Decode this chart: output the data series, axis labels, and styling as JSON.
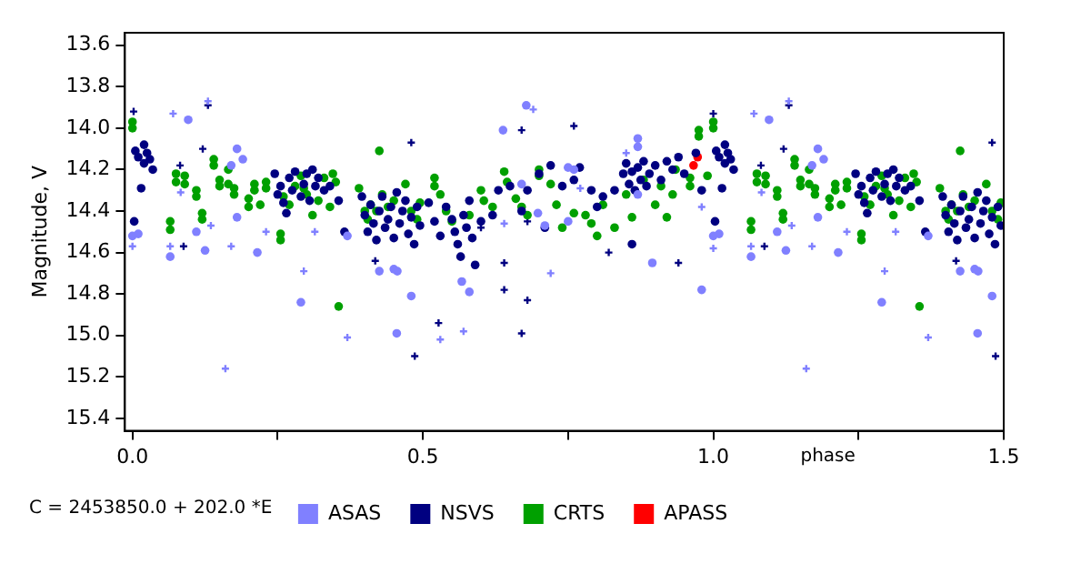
{
  "chart_data": {
    "type": "scatter",
    "ylabel": "Magnitude, V",
    "xlabel": "phase",
    "annotations": [
      "C = 2453850.0 + 202.0 *E"
    ],
    "legend": "bottom",
    "grid": false,
    "marker": "circle",
    "xlim": [
      -0.013,
      1.5
    ],
    "xticks": [
      {
        "value": 0,
        "label": "0.0"
      },
      {
        "value": 0.25,
        "label": null
      },
      {
        "value": 0.5,
        "label": "0.5"
      },
      {
        "value": 0.75,
        "label": null
      },
      {
        "value": 1,
        "label": "1.0"
      },
      {
        "value": 1.25,
        "label": null
      },
      {
        "value": 1.5,
        "label": "1.5"
      }
    ],
    "ylim": [
      15.46,
      13.54
    ],
    "yticks": [
      13.6,
      13.8,
      {
        "value": 14,
        "label": "14.0"
      },
      14.2,
      14.4,
      14.6,
      14.8,
      {
        "value": 15,
        "label": "15.0"
      },
      15.2,
      15.4
    ],
    "series": [
      {
        "name": "ASAS",
        "color": "#8080ff",
        "x": [
          0.096,
          0.18,
          0.17,
          0.19,
          0.0,
          0.01,
          0.065,
          0.11,
          0.125,
          0.18,
          0.215,
          0.29,
          0.37,
          0.425,
          0.455,
          0.45,
          0.456,
          0.48,
          0.567,
          0.58,
          0.638,
          0.678,
          0.67,
          0.698,
          0.71,
          0.75,
          0.76,
          0.75,
          0.87,
          0.87,
          0.895,
          0.98,
          1.0,
          0.87,
          1.096,
          1.18,
          1.17,
          1.19,
          1.01,
          1.065,
          1.11,
          1.125,
          1.18,
          1.215,
          1.29,
          1.37,
          1.425,
          1.455,
          1.45,
          1.456,
          1.48
        ],
        "values": [
          13.96,
          14.1,
          14.18,
          14.15,
          14.52,
          14.51,
          14.62,
          14.5,
          14.59,
          14.43,
          14.6,
          14.84,
          14.52,
          14.69,
          14.99,
          14.68,
          14.69,
          14.81,
          14.74,
          14.79,
          14.01,
          13.89,
          14.27,
          14.41,
          14.47,
          14.19,
          14.2,
          14.45,
          14.05,
          14.09,
          14.65,
          14.78,
          14.52,
          14.32,
          13.96,
          14.1,
          14.18,
          14.15,
          14.51,
          14.62,
          14.5,
          14.59,
          14.43,
          14.6,
          14.84,
          14.52,
          14.69,
          14.99,
          14.68,
          14.69,
          14.81
        ]
      },
      {
        "name": "NSVS",
        "color": "#000080",
        "x": [
          0.003,
          0.005,
          0.01,
          0.015,
          0.02,
          0.025,
          0.03,
          0.035,
          0.02,
          0.245,
          0.25,
          0.255,
          0.26,
          0.265,
          0.27,
          0.275,
          0.28,
          0.29,
          0.295,
          0.3,
          0.305,
          0.31,
          0.315,
          0.32,
          0.33,
          0.34,
          0.355,
          0.365,
          0.395,
          0.4,
          0.405,
          0.41,
          0.415,
          0.42,
          0.425,
          0.43,
          0.435,
          0.44,
          0.445,
          0.45,
          0.455,
          0.46,
          0.465,
          0.47,
          0.475,
          0.48,
          0.485,
          0.49,
          0.495,
          0.51,
          0.52,
          0.53,
          0.54,
          0.55,
          0.555,
          0.56,
          0.565,
          0.57,
          0.575,
          0.58,
          0.585,
          0.59,
          0.6,
          0.62,
          0.63,
          0.65,
          0.67,
          0.68,
          0.7,
          0.71,
          0.72,
          0.74,
          0.76,
          0.77,
          0.79,
          0.8,
          0.81,
          0.83,
          0.845,
          0.85,
          0.855,
          0.86,
          0.865,
          0.87,
          0.875,
          0.88,
          0.885,
          0.89,
          0.9,
          0.91,
          0.92,
          0.93,
          0.94,
          0.95,
          0.86,
          0.97,
          0.98,
          1.003,
          1.005,
          1.01,
          1.015,
          1.02,
          1.025,
          1.03,
          1.035,
          1.02,
          1.245,
          1.25,
          1.255,
          1.26,
          1.265,
          1.27,
          1.275,
          1.28,
          1.29,
          1.295,
          1.3,
          1.305,
          1.31,
          1.315,
          1.32,
          1.33,
          1.34,
          1.355,
          1.365,
          1.395,
          1.4,
          1.405,
          1.41,
          1.415,
          1.42,
          1.425,
          1.43,
          1.435,
          1.44,
          1.445,
          1.45,
          1.455,
          1.46,
          1.465,
          1.47,
          1.475,
          1.48,
          1.485,
          1.49,
          1.495
        ],
        "values": [
          14.45,
          14.11,
          14.14,
          14.29,
          14.08,
          14.12,
          14.15,
          14.2,
          14.17,
          14.22,
          14.32,
          14.28,
          14.36,
          14.41,
          14.24,
          14.3,
          14.21,
          14.33,
          14.27,
          14.22,
          14.35,
          14.2,
          14.28,
          14.24,
          14.3,
          14.28,
          14.35,
          14.5,
          14.33,
          14.42,
          14.5,
          14.37,
          14.46,
          14.54,
          14.4,
          14.33,
          14.48,
          14.44,
          14.38,
          14.53,
          14.31,
          14.46,
          14.4,
          14.35,
          14.51,
          14.43,
          14.56,
          14.38,
          14.47,
          14.36,
          14.45,
          14.52,
          14.38,
          14.44,
          14.5,
          14.56,
          14.62,
          14.42,
          14.48,
          14.35,
          14.53,
          14.66,
          14.45,
          14.42,
          14.3,
          14.28,
          14.4,
          14.3,
          14.22,
          14.48,
          14.18,
          14.28,
          14.25,
          14.19,
          14.3,
          14.38,
          14.33,
          14.3,
          14.22,
          14.17,
          14.27,
          14.21,
          14.3,
          14.19,
          14.25,
          14.16,
          14.28,
          14.22,
          14.18,
          14.25,
          14.16,
          14.2,
          14.14,
          14.22,
          14.56,
          14.12,
          14.3,
          14.45,
          14.11,
          14.14,
          14.29,
          14.08,
          14.12,
          14.15,
          14.2,
          14.17,
          14.22,
          14.32,
          14.28,
          14.36,
          14.41,
          14.24,
          14.3,
          14.21,
          14.33,
          14.27,
          14.22,
          14.35,
          14.2,
          14.28,
          14.24,
          14.3,
          14.28,
          14.35,
          14.5,
          14.33,
          14.42,
          14.5,
          14.37,
          14.46,
          14.54,
          14.4,
          14.33,
          14.48,
          14.44,
          14.38,
          14.53,
          14.31,
          14.46,
          14.4,
          14.35,
          14.51,
          14.43,
          14.56,
          14.38,
          14.47
        ]
      },
      {
        "name": "CRTS",
        "color": "#00a000",
        "x": [
          0.0,
          0.0,
          0.075,
          0.075,
          0.065,
          0.065,
          0.09,
          0.09,
          0.11,
          0.11,
          0.12,
          0.12,
          0.14,
          0.14,
          0.15,
          0.15,
          0.165,
          0.165,
          0.175,
          0.175,
          0.2,
          0.2,
          0.21,
          0.21,
          0.22,
          0.23,
          0.23,
          0.26,
          0.27,
          0.255,
          0.255,
          0.28,
          0.29,
          0.295,
          0.3,
          0.31,
          0.32,
          0.33,
          0.34,
          0.345,
          0.35,
          0.355,
          0.39,
          0.4,
          0.405,
          0.41,
          0.42,
          0.425,
          0.43,
          0.44,
          0.45,
          0.47,
          0.48,
          0.49,
          0.495,
          0.52,
          0.52,
          0.53,
          0.54,
          0.55,
          0.58,
          0.6,
          0.605,
          0.62,
          0.64,
          0.645,
          0.66,
          0.67,
          0.68,
          0.7,
          0.7,
          0.72,
          0.73,
          0.74,
          0.76,
          0.78,
          0.79,
          0.8,
          0.81,
          0.83,
          0.85,
          0.86,
          0.88,
          0.9,
          0.91,
          0.92,
          0.93,
          0.935,
          0.96,
          0.96,
          0.975,
          0.975,
          0.99,
          1.0,
          1.0,
          1.075,
          1.075,
          1.065,
          1.065,
          1.09,
          1.09,
          1.11,
          1.11,
          1.12,
          1.12,
          1.14,
          1.14,
          1.15,
          1.15,
          1.165,
          1.165,
          1.175,
          1.175,
          1.2,
          1.2,
          1.21,
          1.21,
          1.22,
          1.23,
          1.23,
          1.26,
          1.27,
          1.255,
          1.255,
          1.28,
          1.29,
          1.295,
          1.3,
          1.31,
          1.32,
          1.33,
          1.34,
          1.345,
          1.35,
          1.355,
          1.39,
          1.4,
          1.405,
          1.41,
          1.42,
          1.425,
          1.43,
          1.44,
          1.45,
          1.47,
          1.48,
          1.49,
          1.495
        ],
        "values": [
          13.97,
          14.0,
          14.22,
          14.26,
          14.45,
          14.49,
          14.23,
          14.27,
          14.3,
          14.33,
          14.41,
          14.44,
          14.15,
          14.18,
          14.25,
          14.28,
          14.2,
          14.27,
          14.29,
          14.32,
          14.34,
          14.38,
          14.27,
          14.3,
          14.37,
          14.26,
          14.29,
          14.33,
          14.37,
          14.51,
          14.54,
          14.28,
          14.23,
          14.29,
          14.32,
          14.42,
          14.35,
          14.24,
          14.38,
          14.22,
          14.26,
          14.86,
          14.29,
          14.4,
          14.44,
          14.37,
          14.4,
          14.11,
          14.32,
          14.38,
          14.35,
          14.27,
          14.4,
          14.44,
          14.36,
          14.24,
          14.28,
          14.32,
          14.4,
          14.45,
          14.42,
          14.3,
          14.35,
          14.38,
          14.21,
          14.26,
          14.34,
          14.38,
          14.42,
          14.2,
          14.23,
          14.27,
          14.37,
          14.48,
          14.41,
          14.42,
          14.46,
          14.52,
          14.37,
          14.48,
          14.32,
          14.43,
          14.25,
          14.37,
          14.28,
          14.43,
          14.32,
          14.2,
          14.24,
          14.28,
          14.01,
          14.04,
          14.23,
          13.97,
          14.0,
          14.22,
          14.26,
          14.45,
          14.49,
          14.23,
          14.27,
          14.3,
          14.33,
          14.41,
          14.44,
          14.15,
          14.18,
          14.25,
          14.28,
          14.2,
          14.27,
          14.29,
          14.32,
          14.34,
          14.38,
          14.27,
          14.3,
          14.37,
          14.26,
          14.29,
          14.33,
          14.37,
          14.51,
          14.54,
          14.28,
          14.23,
          14.29,
          14.32,
          14.42,
          14.35,
          14.24,
          14.38,
          14.22,
          14.26,
          14.86,
          14.29,
          14.4,
          14.44,
          14.37,
          14.4,
          14.11,
          14.32,
          14.38,
          14.35,
          14.27,
          14.4,
          14.44,
          14.36
        ]
      },
      {
        "name": "APASS",
        "color": "#ff0000",
        "x": [
          0.966,
          0.973
        ],
        "values": [
          14.18,
          14.14
        ]
      },
      {
        "color": "#8080ff",
        "marker": "cross",
        "x": [
          0.13,
          0.07,
          0.065,
          0.0,
          0.083,
          0.135,
          0.23,
          0.17,
          0.16,
          0.295,
          0.314,
          0.37,
          0.69,
          0.64,
          0.72,
          0.53,
          0.57,
          0.98,
          1.0,
          0.85,
          0.771,
          1.13,
          1.07,
          1.065,
          1.083,
          1.135,
          1.23,
          1.17,
          1.16,
          1.295,
          1.314,
          1.37
        ],
        "values": [
          13.87,
          13.93,
          14.57,
          14.57,
          14.31,
          14.47,
          14.5,
          14.57,
          15.16,
          14.69,
          14.5,
          15.01,
          13.91,
          14.46,
          14.7,
          15.02,
          14.98,
          14.38,
          14.58,
          14.12,
          14.29,
          13.87,
          13.93,
          14.57,
          14.31,
          14.47,
          14.5,
          14.57,
          15.16,
          14.69,
          14.5,
          15.01
        ]
      },
      {
        "color": "#000080",
        "marker": "cross",
        "x": [
          0.002,
          0.121,
          0.13,
          0.088,
          0.082,
          0.418,
          0.486,
          0.48,
          0.6,
          0.64,
          0.64,
          0.527,
          0.67,
          0.76,
          0.68,
          0.68,
          0.67,
          0.82,
          0.94,
          1.0,
          1.121,
          1.13,
          1.088,
          1.082,
          1.418,
          1.486,
          1.48
        ],
        "values": [
          13.92,
          14.1,
          13.89,
          14.57,
          14.18,
          14.64,
          15.1,
          14.07,
          14.48,
          14.65,
          14.78,
          14.94,
          14.01,
          13.99,
          14.45,
          14.83,
          14.99,
          14.6,
          14.65,
          13.93,
          14.1,
          13.89,
          14.57,
          14.18,
          14.64,
          15.1,
          14.07
        ]
      }
    ]
  }
}
